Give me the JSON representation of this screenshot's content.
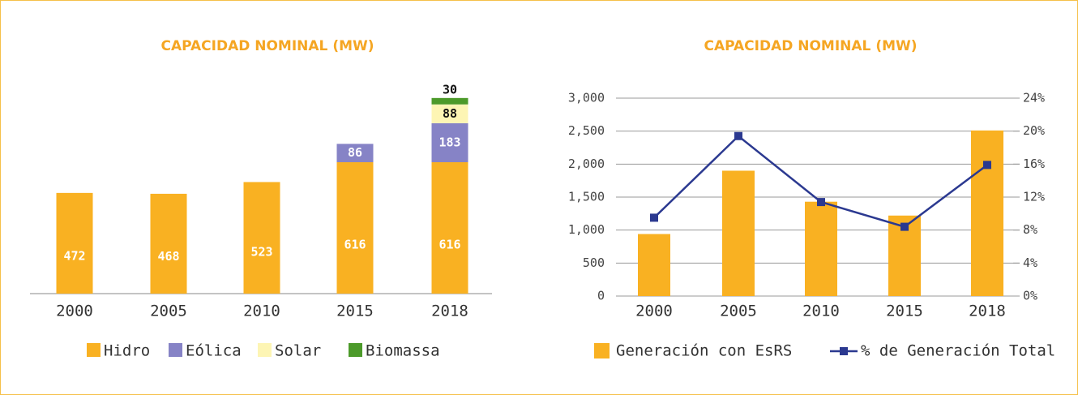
{
  "chart_data": [
    {
      "type": "bar",
      "stacked": true,
      "title": "CAPACIDAD NOMINAL (MW)",
      "categories": [
        "2000",
        "2005",
        "2010",
        "2015",
        "2018"
      ],
      "series": [
        {
          "name": "Hidro",
          "color": "#f9b122",
          "values": [
            472,
            468,
            523,
            616,
            616
          ]
        },
        {
          "name": "Eólica",
          "color": "#8683c6",
          "values": [
            null,
            null,
            null,
            86,
            183
          ]
        },
        {
          "name": "Solar",
          "color": "#fdf5b4",
          "values": [
            null,
            null,
            null,
            null,
            88
          ]
        },
        {
          "name": "Biomassa",
          "color": "#4c9a2a",
          "values": [
            null,
            null,
            null,
            null,
            30
          ]
        }
      ]
    },
    {
      "type": "bar",
      "title": "CAPACIDAD NOMINAL (MW)",
      "categories": [
        "2000",
        "2005",
        "2010",
        "2015",
        "2018"
      ],
      "series": [
        {
          "name": "Generación con EsRS",
          "color": "#f9b122",
          "values": [
            940,
            1900,
            1430,
            1220,
            2510
          ]
        },
        {
          "name": "% de Generación Total",
          "color": "#2b3990",
          "type": "line",
          "axis": "y2",
          "values": [
            9.5,
            19.4,
            11.4,
            8.4,
            15.9
          ]
        }
      ],
      "ylim": [
        0,
        3000
      ],
      "yticks": [
        0,
        500,
        {
          "value": 1000,
          "label": "1,000"
        },
        {
          "value": 1500,
          "label": "1,500"
        },
        {
          "value": 2000,
          "label": "2,000"
        },
        {
          "value": 2500,
          "label": "2,500"
        },
        {
          "value": 3000,
          "label": "3,000"
        }
      ],
      "y2lim": [
        0,
        24
      ],
      "y2ticks": [
        {
          "value": 0,
          "label": "0%"
        },
        {
          "value": 4,
          "label": "4%"
        },
        {
          "value": 8,
          "label": "8%"
        },
        {
          "value": 12,
          "label": "12%"
        },
        {
          "value": 16,
          "label": "16%"
        },
        {
          "value": 20,
          "label": "20%"
        },
        {
          "value": 24,
          "label": "24%"
        }
      ],
      "grid": true
    }
  ]
}
